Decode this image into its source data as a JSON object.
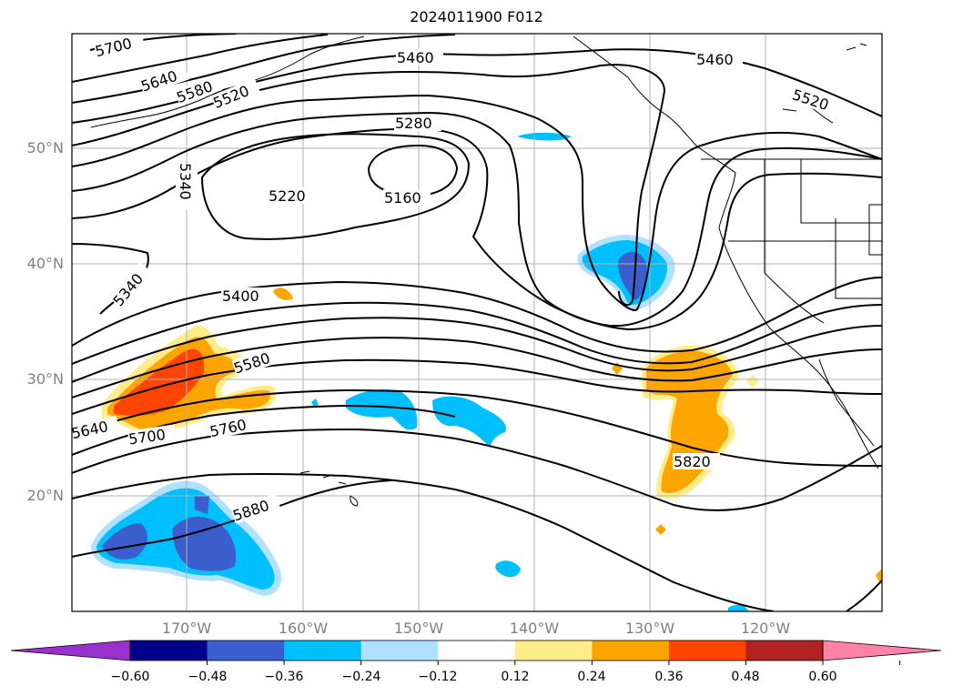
{
  "title": "2024011900 F012",
  "lat_labels": [
    "50°N",
    "40°N",
    "30°N",
    "20°N"
  ],
  "lon_labels": [
    "170°W",
    "160°W",
    "150°W",
    "140°W",
    "130°W",
    "120°W"
  ],
  "contours": {
    "color": "#000000",
    "labels": [
      "5700",
      "5640",
      "5580",
      "5520",
      "5460",
      "5460",
      "5520",
      "5280",
      "5220",
      "5160",
      "5340",
      "5340",
      "5400",
      "5580",
      "5640",
      "5700",
      "5760",
      "5820",
      "5880"
    ]
  },
  "colorbar": {
    "ticks": [
      "−0.60",
      "−0.48",
      "−0.36",
      "−0.24",
      "−0.12",
      "0.12",
      "0.24",
      "0.36",
      "0.48",
      "0.60"
    ],
    "colors": [
      "#9932cc",
      "#00008b",
      "#3a5fcd",
      "#00bfff",
      "#b0e2ff",
      "#ffffff",
      "#ffec8b",
      "#ffa500",
      "#ff4500",
      "#b22222",
      "#ff82ab"
    ]
  }
}
